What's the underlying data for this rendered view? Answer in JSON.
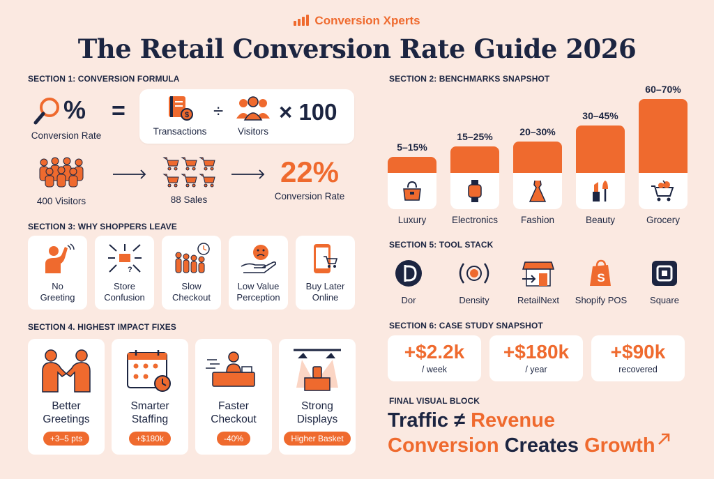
{
  "brand": {
    "name": "Conversion Xperts"
  },
  "title": "The Retail Conversion Rate Guide 2026",
  "section1": {
    "heading": "SECTION 1: CONVERSION FORMULA",
    "conversion_rate_label": "Conversion Rate",
    "equals": "=",
    "transactions_label": "Transactions",
    "divide": "÷",
    "visitors_label": "Visitors",
    "times": "× 100",
    "example_visitors": "400 Visitors",
    "example_sales": "88 Sales",
    "example_result": "22%",
    "example_result_label": "Conversion Rate"
  },
  "section2": {
    "heading": "SECTION 2: BENCHMARKS SNAPSHOT"
  },
  "chart_data": {
    "type": "bar",
    "categories": [
      "Luxury",
      "Electronics",
      "Fashion",
      "Beauty",
      "Grocery"
    ],
    "value_labels": [
      "5–15%",
      "15–25%",
      "20–30%",
      "30–45%",
      "60–70%"
    ],
    "ranges": [
      [
        5,
        15
      ],
      [
        15,
        25
      ],
      [
        20,
        30
      ],
      [
        30,
        45
      ],
      [
        60,
        70
      ]
    ],
    "values": [
      15,
      25,
      30,
      45,
      70
    ],
    "icons": [
      "handbag-icon",
      "smartwatch-icon",
      "dress-icon",
      "lipstick-icon",
      "grocery-cart-icon"
    ],
    "color": "#ef6a2e"
  },
  "section3": {
    "heading": "SECTION 3: WHY SHOPPERS LEAVE",
    "items": [
      {
        "line1": "No",
        "line2": "Greeting",
        "icon": "waving-person-icon"
      },
      {
        "line1": "Store",
        "line2": "Confusion",
        "icon": "confusion-arrows-icon"
      },
      {
        "line1": "Slow",
        "line2": "Checkout",
        "icon": "queue-clock-icon"
      },
      {
        "line1": "Low Value",
        "line2": "Perception",
        "icon": "sad-hand-icon"
      },
      {
        "line1": "Buy Later",
        "line2": "Online",
        "icon": "phone-cart-icon"
      }
    ]
  },
  "section4": {
    "heading": "SECTION 4. HIGHEST IMPACT FIXES",
    "items": [
      {
        "line1": "Better",
        "line2": "Greetings",
        "badge": "+3–5 pts",
        "icon": "handshake-icon"
      },
      {
        "line1": "Smarter",
        "line2": "Staffing",
        "badge": "+$180k",
        "icon": "calendar-staff-icon"
      },
      {
        "line1": "Faster",
        "line2": "Checkout",
        "badge": "-40%",
        "icon": "checkout-counter-icon"
      },
      {
        "line1": "Strong",
        "line2": "Displays",
        "badge": "Higher Basket",
        "icon": "spotlight-display-icon"
      }
    ]
  },
  "section5": {
    "heading": "SECTION 5: TOOL STACK",
    "tools": [
      {
        "name": "Dor",
        "icon": "dor-logo-icon"
      },
      {
        "name": "Density",
        "icon": "density-logo-icon"
      },
      {
        "name": "RetailNext",
        "icon": "storefront-icon"
      },
      {
        "name": "Shopify POS",
        "icon": "shopify-bag-icon"
      },
      {
        "name": "Square",
        "icon": "square-logo-icon"
      }
    ]
  },
  "section6": {
    "heading": "SECTION 6: CASE STUDY SNAPSHOT",
    "cases": [
      {
        "value": "+$2.2k",
        "unit": "/ week"
      },
      {
        "value": "+$180k",
        "unit": "/ year"
      },
      {
        "value": "+$90k",
        "unit": "recovered"
      }
    ]
  },
  "final": {
    "heading": "FINAL VISUAL BLOCK",
    "line1_a": "Traffic ≠",
    "line1_b": "Revenue",
    "line2_a": "Conversion",
    "line2_b": "Creates",
    "line2_c": "Growth"
  },
  "colors": {
    "accent": "#ef6a2e",
    "navy": "#1c2541",
    "background": "#fbe9e1"
  }
}
